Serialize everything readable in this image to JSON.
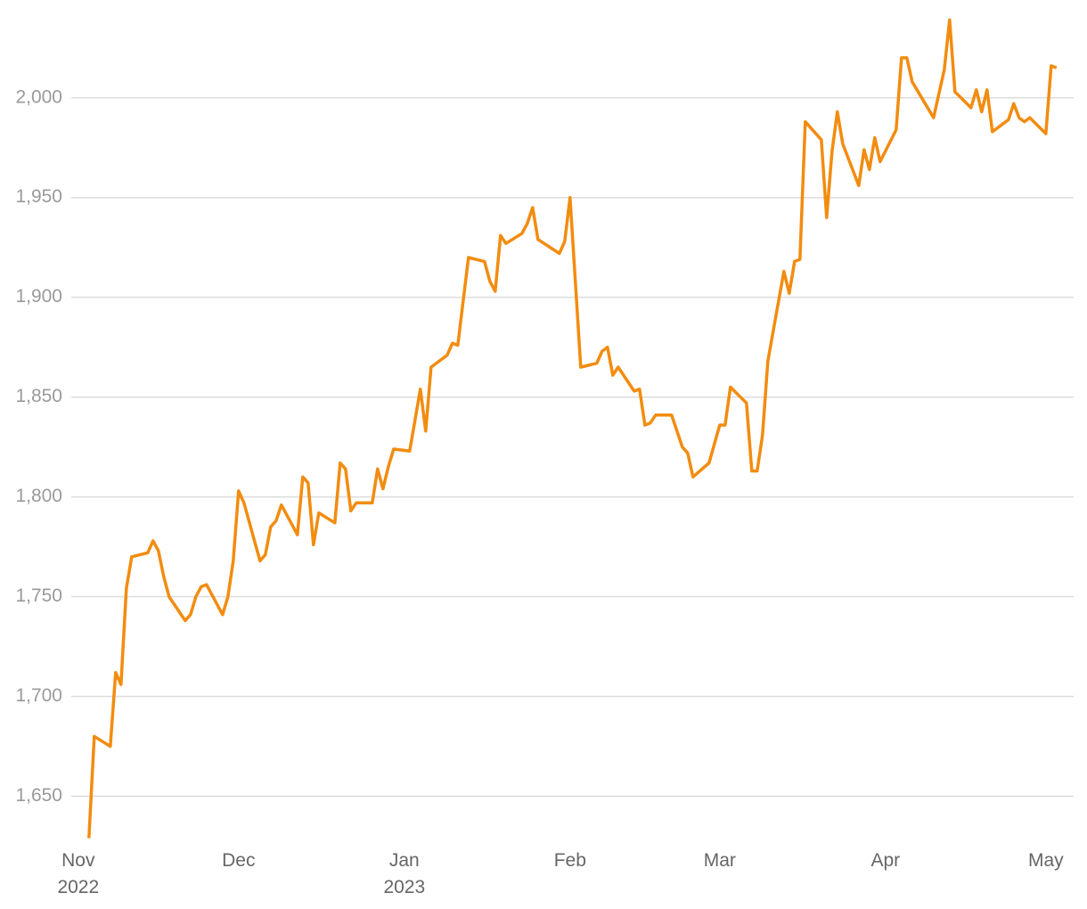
{
  "chart_data": {
    "type": "line",
    "x": [
      2,
      3,
      6,
      7,
      8,
      9,
      10,
      13,
      14,
      15,
      16,
      17,
      20,
      21,
      22,
      23,
      24,
      27,
      28,
      29,
      30,
      31,
      34,
      35,
      36,
      37,
      38,
      41,
      42,
      43,
      44,
      45,
      48,
      49,
      50,
      51,
      52,
      55,
      56,
      57,
      58,
      59,
      62,
      64,
      65,
      66,
      69,
      70,
      71,
      73,
      76,
      77,
      78,
      79,
      80,
      83,
      84,
      85,
      86,
      90,
      91,
      92,
      94,
      97,
      98,
      99,
      100,
      101,
      104,
      105,
      106,
      107,
      108,
      111,
      112,
      113,
      114,
      115,
      118,
      120,
      121,
      122,
      125,
      126,
      127,
      128,
      129,
      132,
      133,
      134,
      135,
      136,
      139,
      140,
      141,
      142,
      143,
      146,
      147,
      148,
      149,
      150,
      153,
      154,
      155,
      156,
      160,
      161,
      162,
      163,
      164,
      167,
      168,
      169,
      170,
      171,
      174,
      175,
      176,
      177,
      178,
      181,
      182,
      183
    ],
    "values": [
      1629,
      1680,
      1675,
      1712,
      1706,
      1754,
      1770,
      1772,
      1778,
      1773,
      1760,
      1750,
      1738,
      1741,
      1750,
      1755,
      1756,
      1741,
      1750,
      1768,
      1803,
      1797,
      1768,
      1771,
      1785,
      1788,
      1796,
      1781,
      1810,
      1807,
      1776,
      1792,
      1787,
      1817,
      1814,
      1793,
      1797,
      1797,
      1814,
      1804,
      1815,
      1824,
      1823,
      1854,
      1833,
      1865,
      1871,
      1877,
      1876,
      1920,
      1918,
      1908,
      1903,
      1931,
      1927,
      1932,
      1937,
      1945,
      1929,
      1922,
      1928,
      1950,
      1865,
      1867,
      1873,
      1875,
      1861,
      1865,
      1853,
      1854,
      1836,
      1837,
      1841,
      1841,
      1833,
      1825,
      1822,
      1810,
      1817,
      1836,
      1836,
      1855,
      1847,
      1813,
      1813,
      1831,
      1868,
      1913,
      1902,
      1918,
      1919,
      1988,
      1979,
      1940,
      1973,
      1993,
      1977,
      1956,
      1974,
      1964,
      1980,
      1968,
      1984,
      2020,
      2020,
      2008,
      1990,
      2002,
      2014,
      2039,
      2003,
      1995,
      2004,
      1993,
      2004,
      1983,
      1989,
      1997,
      1990,
      1988,
      1990,
      1982,
      2016,
      2015
    ],
    "color": "#f28c0f",
    "xlim": [
      -1.3,
      186.2
    ],
    "xticks": [
      {
        "value": 0,
        "label": "Nov\n2022"
      },
      {
        "value": 30,
        "label": "Dec"
      },
      {
        "value": 61,
        "label": "Jan\n2023"
      },
      {
        "value": 92,
        "label": "Feb"
      },
      {
        "value": 120,
        "label": "Mar"
      },
      {
        "value": 151,
        "label": "Apr"
      },
      {
        "value": 181,
        "label": "May"
      }
    ],
    "ylim": [
      1627,
      2049
    ],
    "yticks": [
      {
        "value": 1650,
        "label": "1,650"
      },
      {
        "value": 1700,
        "label": "1,700"
      },
      {
        "value": 1750,
        "label": "1,750"
      },
      {
        "value": 1800,
        "label": "1,800"
      },
      {
        "value": 1850,
        "label": "1,850"
      },
      {
        "value": 1900,
        "label": "1,900"
      },
      {
        "value": 1950,
        "label": "1,950"
      },
      {
        "value": 2000,
        "label": "2,000"
      }
    ],
    "grid": true
  }
}
